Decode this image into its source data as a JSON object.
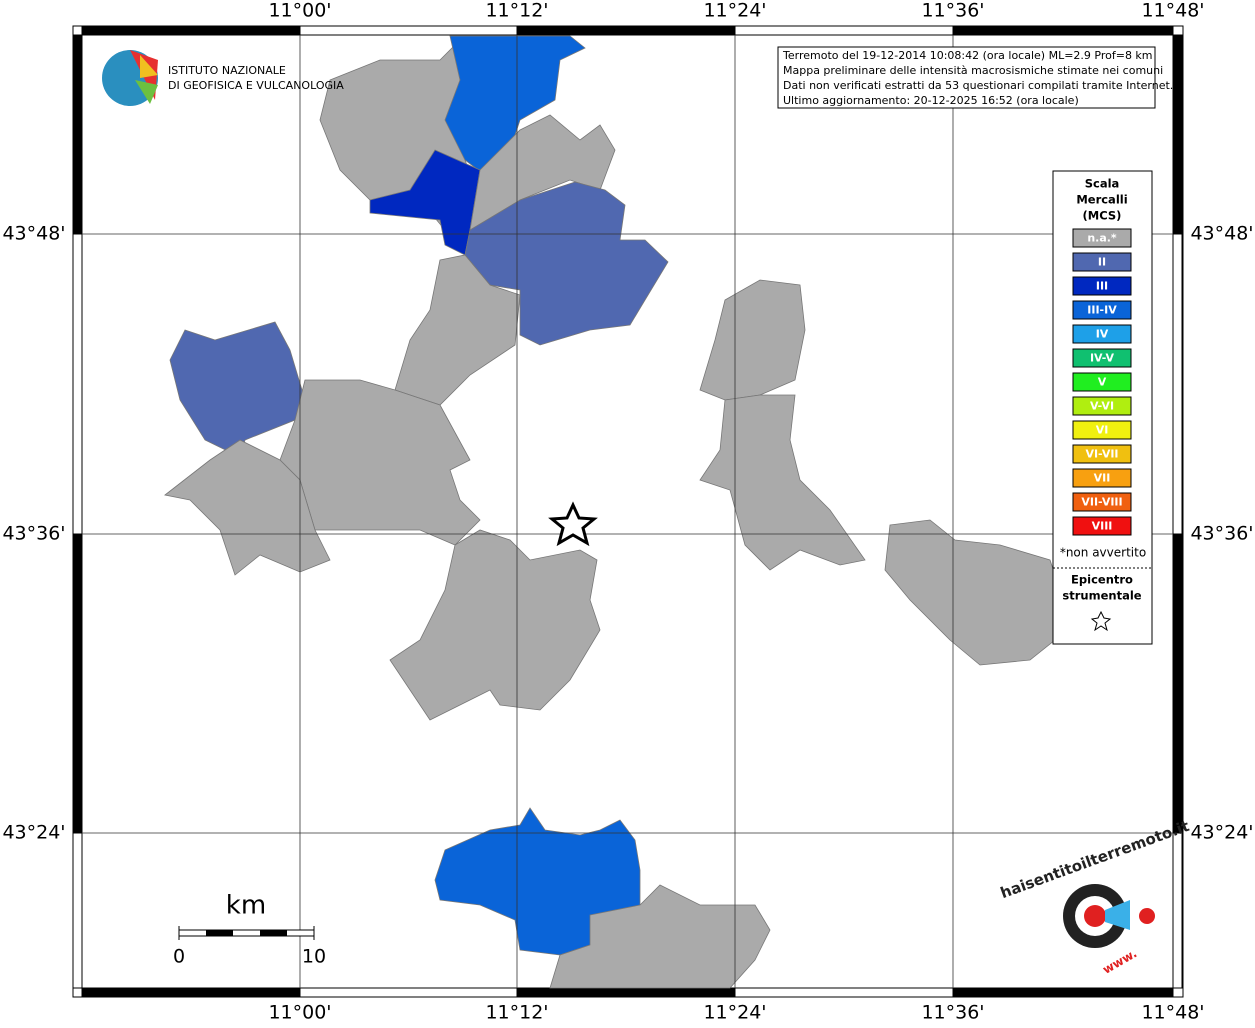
{
  "logo": {
    "line1": "ISTITUTO NAZIONALE",
    "line2": "DI GEOFISICA E VULCANOLOGIA"
  },
  "axes": {
    "longitudes": [
      "11°00'",
      "11°12'",
      "11°24'",
      "11°36'",
      "11°48'"
    ],
    "latitudes": [
      "43°48'",
      "43°36'",
      "43°24'"
    ]
  },
  "info": [
    "Terremoto del 19-12-2014 10:08:42 (ora locale) ML=2.9 Prof=8 km",
    "Mappa preliminare delle intensità macrosismiche stimate nei comuni",
    "Dati non verificati estratti da 53 questionari compilati tramite Internet.",
    "Ultimo aggiornamento: 20-12-2025 16:52 (ora locale)"
  ],
  "legend": {
    "title": [
      "Scala",
      "Mercalli",
      "(MCS)"
    ],
    "items": [
      {
        "label": "n.a.*",
        "color": "#aaaaaa"
      },
      {
        "label": "II",
        "color": "#5068b0"
      },
      {
        "label": "III",
        "color": "#0028c0"
      },
      {
        "label": "III-IV",
        "color": "#0a64d8"
      },
      {
        "label": "IV",
        "color": "#1ea0e8"
      },
      {
        "label": "IV-V",
        "color": "#10c070"
      },
      {
        "label": "V",
        "color": "#20ee20"
      },
      {
        "label": "V-VI",
        "color": "#b0ee10"
      },
      {
        "label": "VI",
        "color": "#f0f010"
      },
      {
        "label": "VI-VII",
        "color": "#f0c010"
      },
      {
        "label": "VII",
        "color": "#f8a010"
      },
      {
        "label": "VII-VIII",
        "color": "#f06010"
      },
      {
        "label": "VIII",
        "color": "#f01010"
      }
    ],
    "note": "*non avvertito",
    "epicenter": [
      "Epicentro",
      "strumentale"
    ]
  },
  "scale": {
    "unit": "km",
    "start": "0",
    "end": "10"
  },
  "site_logo": {
    "text": "haisentitoilterremoto.it",
    "prefix": "www."
  }
}
